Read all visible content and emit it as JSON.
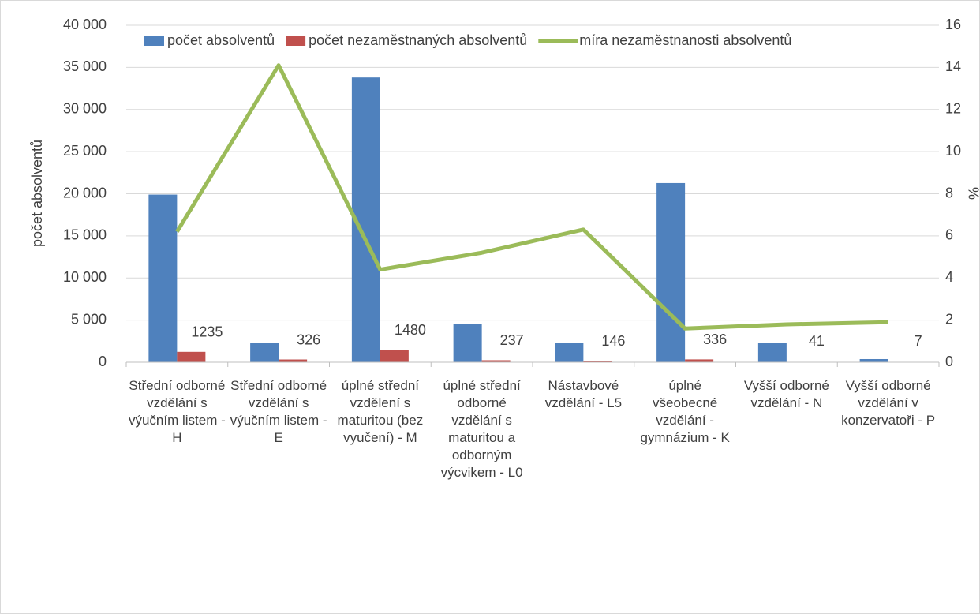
{
  "chart_data": {
    "type": "bar",
    "categories": [
      "Střední odborné vzdělání s výučním listem - H",
      "Střední odborné vzdělání s výučním listem - E",
      "úplné střední vzdělení s maturitou (bez vyučení) - M",
      "úplné střední odborné vzdělání s maturitou a odborným výcvikem - L0",
      "Nástavbové vzdělání - L5",
      "úplné všeobecné vzdělání - gymnázium - K",
      "Vyšší odborné vzdělání - N",
      "Vyšší odborné vzdělání v konzervatoři - P"
    ],
    "series": [
      {
        "name": "počet absolventů",
        "color": "#4f81bd",
        "type": "bar",
        "values": [
          19900,
          2250,
          33800,
          4500,
          2250,
          21270,
          2250,
          375
        ]
      },
      {
        "name": "počet nezaměstnaných absolventů",
        "color": "#c0504d",
        "type": "bar",
        "values": [
          1235,
          326,
          1480,
          237,
          146,
          336,
          41,
          7
        ]
      },
      {
        "name": "míra nezaměstnanosti absolventů",
        "color": "#9bbb59",
        "type": "line",
        "axis": "y2",
        "values": [
          6.2,
          14.1,
          4.4,
          5.2,
          6.3,
          1.6,
          1.8,
          1.9
        ]
      }
    ],
    "y_label": "počet absolventů",
    "y2_label": "%",
    "ylim": [
      0,
      40000
    ],
    "yticks": [
      0,
      {
        "value": 5000,
        "label": "5 000"
      },
      {
        "value": 10000,
        "label": "10 000"
      },
      {
        "value": 15000,
        "label": "15 000"
      },
      {
        "value": 20000,
        "label": "20 000"
      },
      {
        "value": 25000,
        "label": "25 000"
      },
      {
        "value": 30000,
        "label": "30 000"
      },
      {
        "value": 35000,
        "label": "35 000"
      },
      {
        "value": 40000,
        "label": "40 000"
      }
    ],
    "y2lim": [
      0,
      16
    ],
    "y2ticks": [
      0,
      2,
      4,
      6,
      8,
      10,
      12,
      14,
      16
    ],
    "grid": true,
    "legend": "top"
  }
}
